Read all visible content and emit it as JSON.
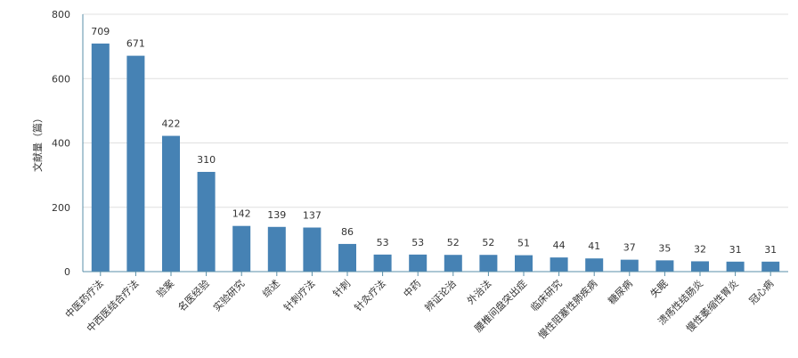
{
  "chart_data": {
    "type": "bar",
    "y_label": "文献量（篇）",
    "categories": [
      "中医药疗法",
      "中西医结合疗法",
      "验案",
      "名医经验",
      "实验研究",
      "综述",
      "针刺疗法",
      "针刺",
      "针灸疗法",
      "中药",
      "辨证论治",
      "外治法",
      "腰椎间盘突出症",
      "临床研究",
      "慢性阻塞性肺疾病",
      "糖尿病",
      "失眠",
      "溃疡性结肠炎",
      "慢性萎缩性胃炎",
      "冠心病"
    ],
    "values": [
      709,
      671,
      422,
      310,
      142,
      139,
      137,
      86,
      53,
      53,
      52,
      52,
      51,
      44,
      41,
      37,
      35,
      32,
      31,
      31
    ],
    "color": "#4682b4",
    "ylim": [
      0,
      800
    ],
    "yticks": [
      0,
      200,
      400,
      600,
      800
    ],
    "grid": true
  }
}
